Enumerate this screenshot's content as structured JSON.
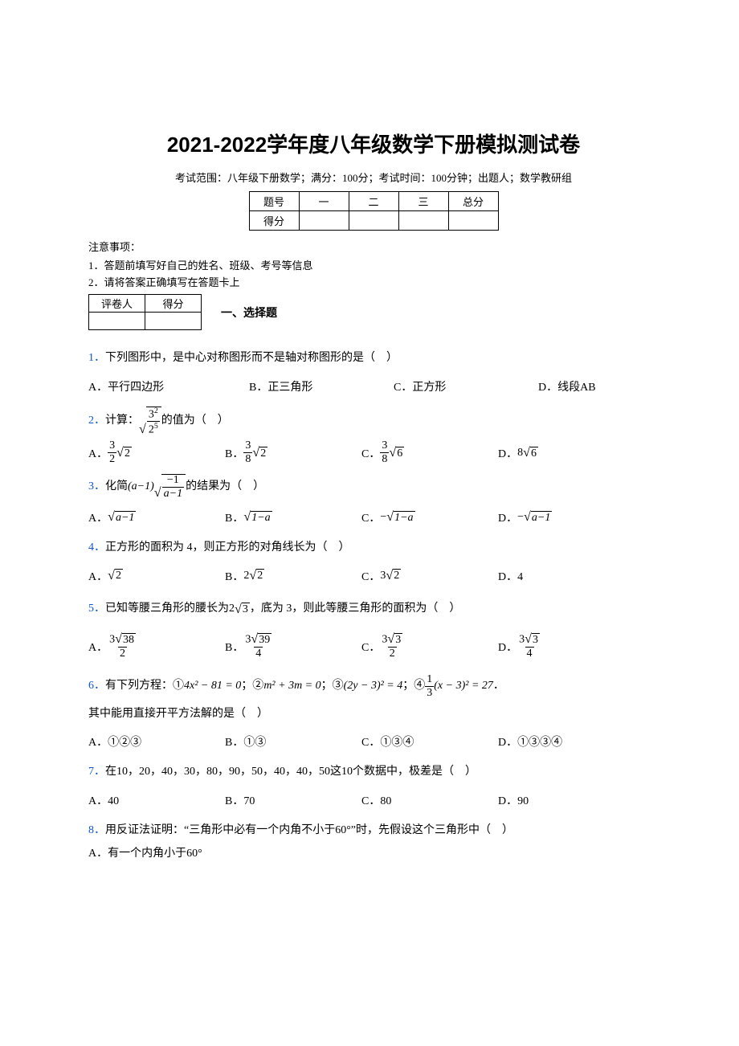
{
  "title": "2021-2022学年度八年级数学下册模拟测试卷",
  "subtitle": "考试范围：八年级下册数学；满分：100分；考试时间：100分钟；出题人；数学教研组",
  "scoreTable": {
    "row1": [
      "题号",
      "一",
      "二",
      "三",
      "总分"
    ],
    "row2": [
      "得分",
      "",
      "",
      "",
      ""
    ]
  },
  "noticeHead": "注意事项：",
  "notice1": "1．答题前填写好自己的姓名、班级、考号等信息",
  "notice2": "2．请将答案正确填写在答题卡上",
  "reviewerTable": {
    "row1": [
      "评卷人",
      "得分"
    ],
    "row2": [
      "",
      ""
    ]
  },
  "sectionTitle": "一、选择题",
  "q1": {
    "num": "1．",
    "stem": "下列图形中，是中心对称图形而不是轴对称图形的是（　）",
    "A": "A．平行四边形",
    "B": "B．正三角形",
    "C": "C．正方形",
    "D": "D．线段AB"
  },
  "q2": {
    "num": "2．",
    "stemPrefix": "计算：",
    "stemSuffix": " 的值为（　）",
    "frac": {
      "nu": "3",
      "nuSup": "2",
      "de": "2",
      "deSup": "5"
    },
    "A": {
      "label": "A．",
      "nu": "3",
      "de": "2",
      "root": "2"
    },
    "B": {
      "label": "B．",
      "nu": "3",
      "de": "8",
      "root": "2"
    },
    "C": {
      "label": "C．",
      "nu": "3",
      "de": "8",
      "root": "6"
    },
    "D": {
      "label": "D．",
      "coef": "8",
      "root": "6"
    }
  },
  "q3": {
    "num": "3．",
    "stemPrefix": "化简 ",
    "coef": "(a−1)",
    "fracNu": "−1",
    "fracDe": "a−1",
    "stemSuffix": " 的结果为（　）",
    "A": {
      "label": "A．",
      "root": "a−1"
    },
    "B": {
      "label": "B．",
      "root": "1−a"
    },
    "C": {
      "label": "C．",
      "neg": "−",
      "root": "1−a"
    },
    "D": {
      "label": "D．",
      "neg": "−",
      "root": "a−1"
    }
  },
  "q4": {
    "num": "4．",
    "stem": "正方形的面积为 4，则正方形的对角线长为（　）",
    "A": {
      "label": "A．",
      "root": "2"
    },
    "B": {
      "label": "B．",
      "coef": "2",
      "root": "2"
    },
    "C": {
      "label": "C．",
      "coef": "3",
      "root": "2"
    },
    "D": "D．4"
  },
  "q5": {
    "num": "5．",
    "stemPrefix": "已知等腰三角形的腰长为 ",
    "coef": "2",
    "root": "3",
    "stemSuffix": " ，底为 3，则此等腰三角形的面积为（　）",
    "A": {
      "label": "A．",
      "nuCoef": "3",
      "nuRoot": "38",
      "de": "2"
    },
    "B": {
      "label": "B．",
      "nuCoef": "3",
      "nuRoot": "39",
      "de": "4"
    },
    "C": {
      "label": "C．",
      "nuCoef": "3",
      "nuRoot": "3",
      "de": "2"
    },
    "D": {
      "label": "D．",
      "nuCoef": "3",
      "nuRoot": "3",
      "de": "4"
    }
  },
  "q6": {
    "num": "6．",
    "stemPrefix": "有下列方程：① ",
    "eq1": "4x² − 81 = 0",
    "sep1": " ；② ",
    "eq2": "m² + 3m = 0",
    "sep2": " ；③ ",
    "eq3": "(2y − 3)² = 4",
    "sep3": " ；④ ",
    "eq4pre": "",
    "eq4nu": "1",
    "eq4de": "3",
    "eq4post": "(x − 3)² = 27",
    "stemEnd": " ．",
    "line2": "其中能用直接开平方法解的是（　）",
    "A": "A．①②③",
    "B": "B．①③",
    "C": "C．①③④",
    "D": "D．①③③④"
  },
  "q7": {
    "num": "7．",
    "stem": "在10，20，40，30，80，90，50，40，40，50这10个数据中，极差是（　）",
    "A": "A．40",
    "B": "B．70",
    "C": "C．80",
    "D": "D．90"
  },
  "q8": {
    "num": "8．",
    "stem": "用反证法证明：“三角形中必有一个内角不小于60°”时，先假设这个三角形中（　）",
    "A": "A．有一个内角小于60°"
  },
  "colors": {
    "text": "#000000",
    "link": "#1155cc",
    "background": "#ffffff"
  }
}
